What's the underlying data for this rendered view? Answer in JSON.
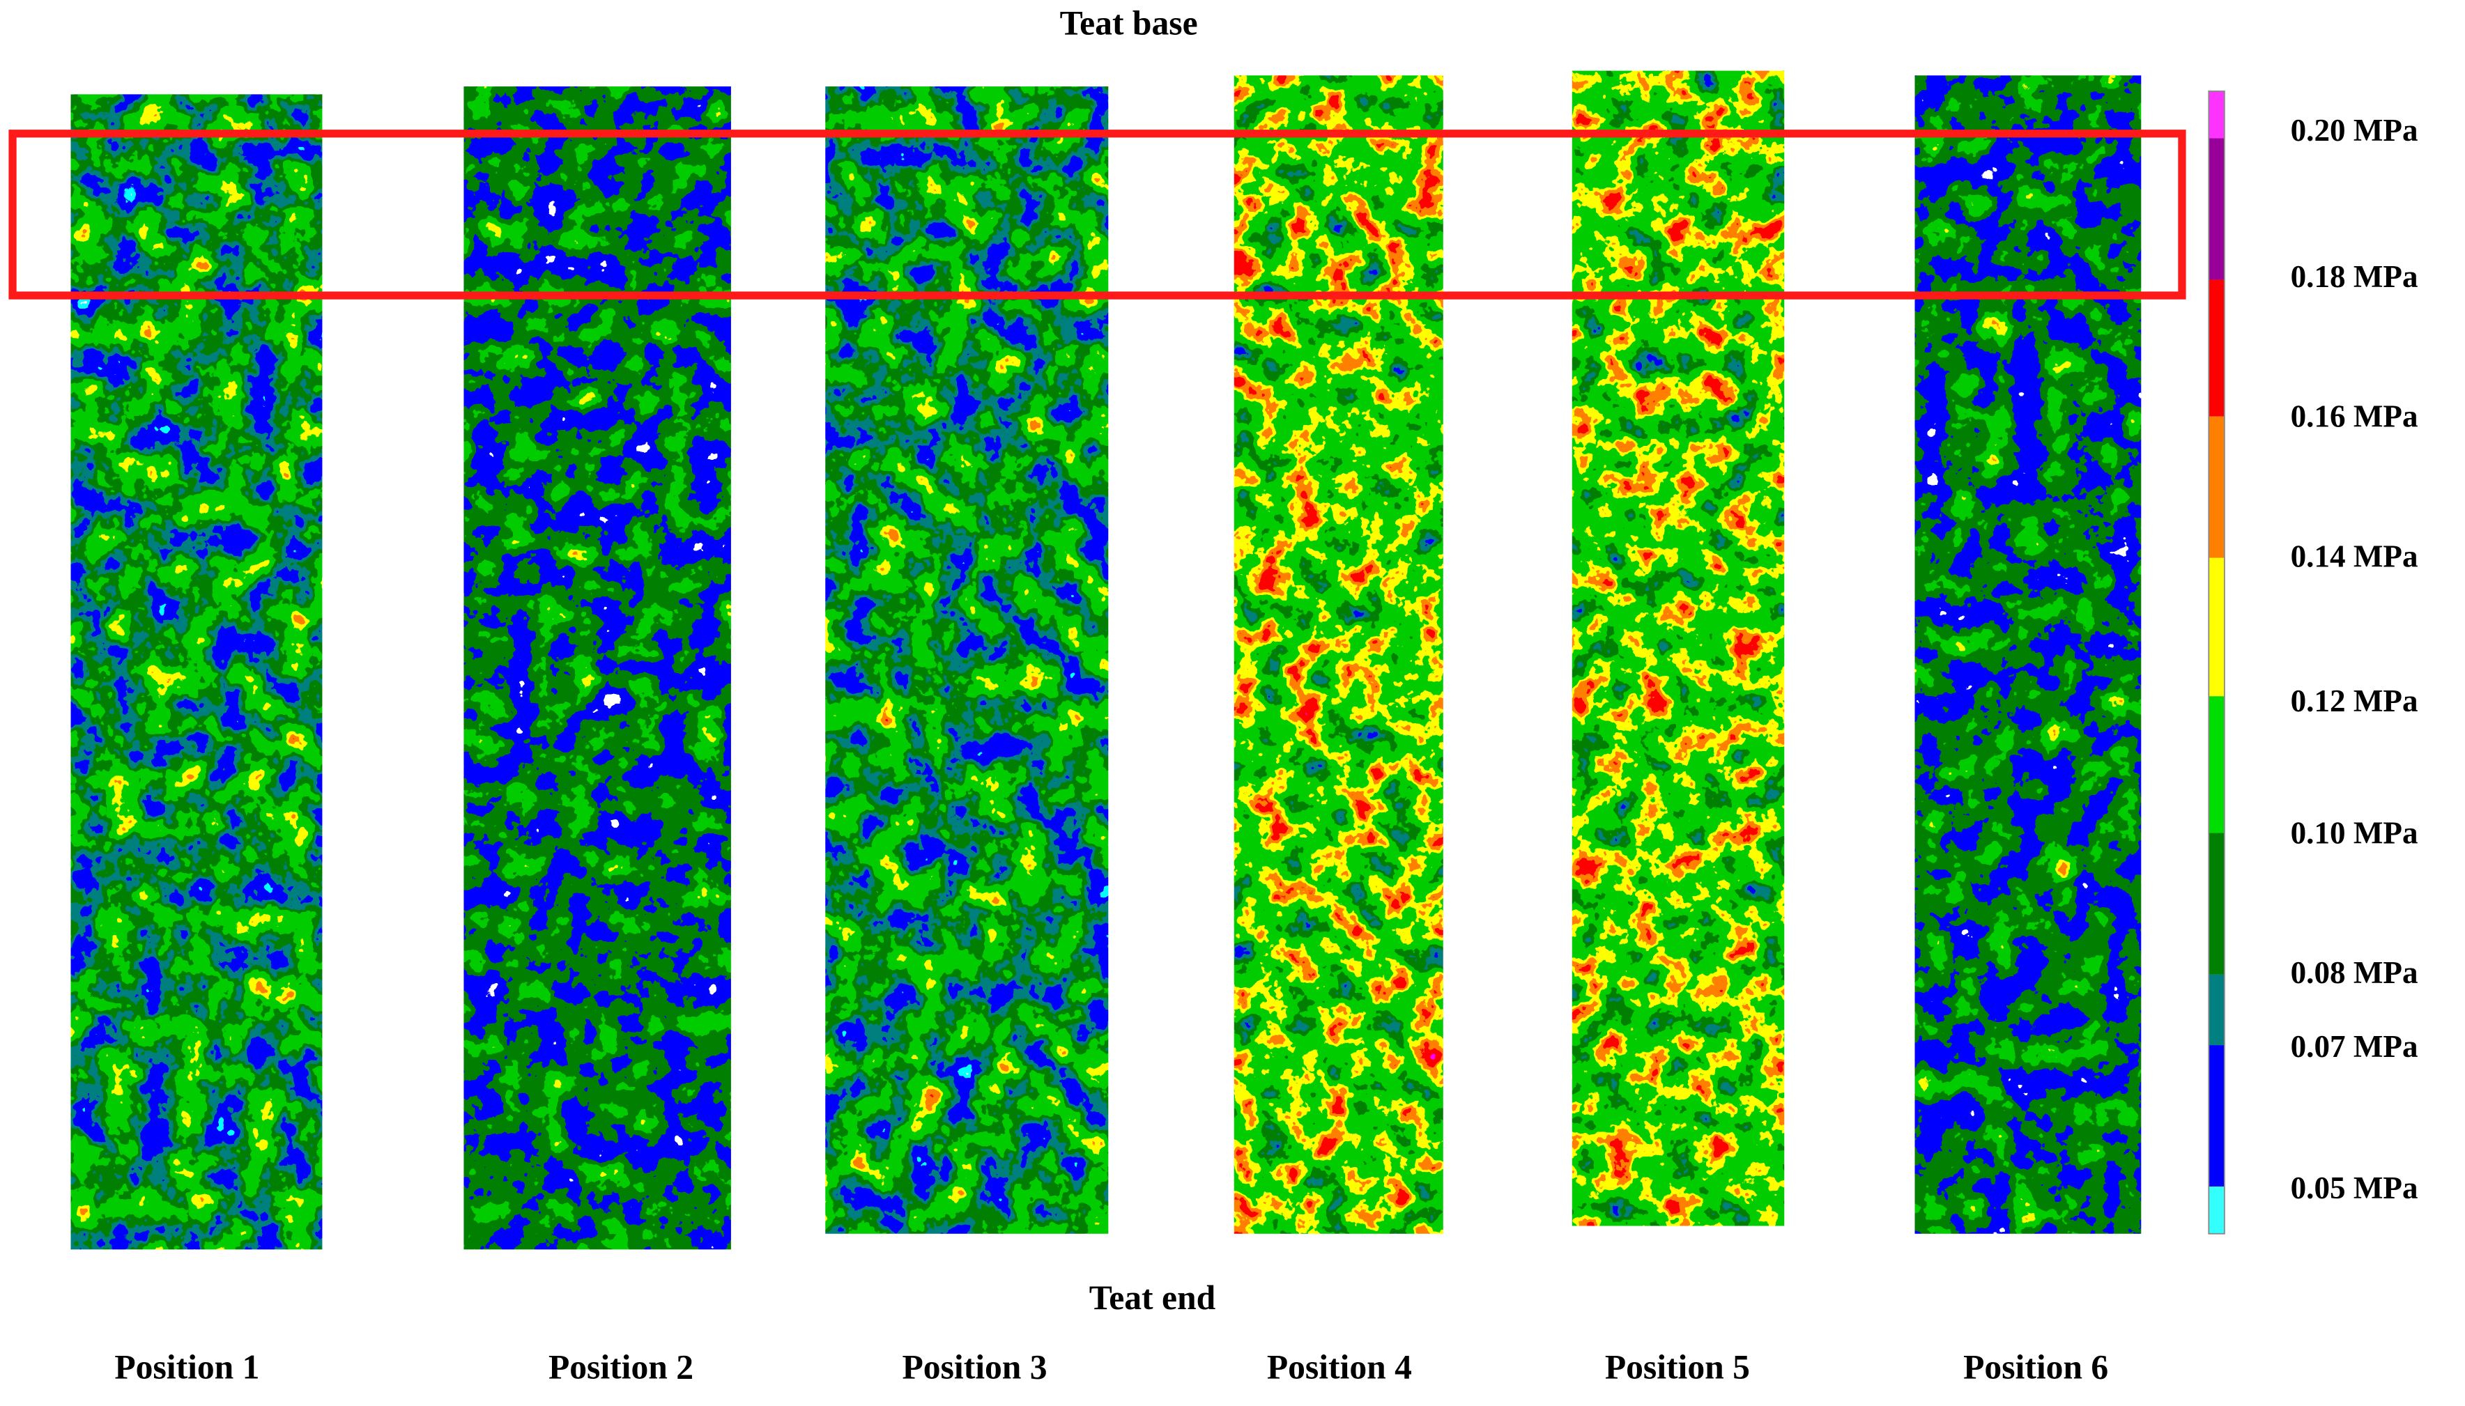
{
  "figure": {
    "top_label": "Teat base",
    "bottom_label": "Teat end",
    "positions": [
      "Position 1",
      "Position 2",
      "Position 3",
      "Position 4",
      "Position 5",
      "Position 6"
    ],
    "legend": [
      "0.20 MPa",
      "0.18 MPa",
      "0.16 MPa",
      "0.14 MPa",
      "0.12 MPa",
      "0.10 MPa",
      "0.08 MPa",
      "0.07 MPa",
      "0.05 MPa"
    ]
  }
}
